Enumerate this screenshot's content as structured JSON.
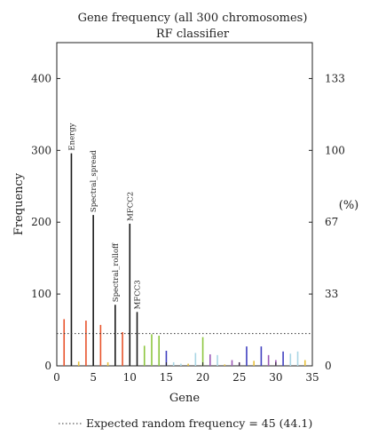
{
  "chart_data": {
    "type": "bar",
    "title": "Gene frequency (all 300 chromosomes)",
    "subtitle": "RF classifier",
    "xlabel": "Gene",
    "ylabel": "Frequency",
    "y2label": "(%)",
    "xlim": [
      0,
      35
    ],
    "ylim": [
      0,
      450
    ],
    "xticks": [
      0,
      5,
      10,
      15,
      20,
      25,
      30,
      35
    ],
    "yticks": [
      0,
      100,
      200,
      300,
      400
    ],
    "y2ticks": [
      {
        "value": 0,
        "label": "0"
      },
      {
        "value": 100,
        "label": "33"
      },
      {
        "value": 200,
        "label": "67"
      },
      {
        "value": 300,
        "label": "100"
      },
      {
        "value": 400,
        "label": "133"
      }
    ],
    "bars": [
      {
        "x": 1,
        "value": 65,
        "color": "#e8532b"
      },
      {
        "x": 2,
        "value": 296,
        "color": "#1a1a1a",
        "label": "Energy"
      },
      {
        "x": 3,
        "value": 6,
        "color": "#e9c13a"
      },
      {
        "x": 4,
        "value": 63,
        "color": "#e8532b"
      },
      {
        "x": 5,
        "value": 210,
        "color": "#1a1a1a",
        "label": "Spectral_spread"
      },
      {
        "x": 6,
        "value": 57,
        "color": "#e8532b"
      },
      {
        "x": 7,
        "value": 5,
        "color": "#e9c13a"
      },
      {
        "x": 8,
        "value": 85,
        "color": "#1a1a1a",
        "label": "Spectral_rolloff"
      },
      {
        "x": 9,
        "value": 47,
        "color": "#e8532b"
      },
      {
        "x": 10,
        "value": 198,
        "color": "#1a1a1a",
        "label": "MFCC2"
      },
      {
        "x": 11,
        "value": 75,
        "color": "#1a1a1a",
        "label": "MFCC3"
      },
      {
        "x": 12,
        "value": 28,
        "color": "#8dc63f"
      },
      {
        "x": 13,
        "value": 44,
        "color": "#8dc63f"
      },
      {
        "x": 14,
        "value": 42,
        "color": "#8dc63f"
      },
      {
        "x": 15,
        "value": 21,
        "color": "#3f3fbf"
      },
      {
        "x": 16,
        "value": 5,
        "color": "#a9d6e5"
      },
      {
        "x": 17,
        "value": 3,
        "color": "#a9d6e5"
      },
      {
        "x": 18,
        "value": 3,
        "color": "#e9c13a"
      },
      {
        "x": 19,
        "value": 18,
        "color": "#a9d6e5"
      },
      {
        "x": 20,
        "value": 40,
        "color": "#8dc63f"
      },
      {
        "x": 21,
        "value": 16,
        "color": "#9b59b6"
      },
      {
        "x": 22,
        "value": 15,
        "color": "#a9d6e5"
      },
      {
        "x": 23,
        "value": 2,
        "color": "#e9c13a"
      },
      {
        "x": 24,
        "value": 8,
        "color": "#9b59b6"
      },
      {
        "x": 25,
        "value": 5,
        "color": "#9b59b6"
      },
      {
        "x": 26,
        "value": 27,
        "color": "#3f3fbf"
      },
      {
        "x": 27,
        "value": 7,
        "color": "#e9c13a"
      },
      {
        "x": 28,
        "value": 27,
        "color": "#3f3fbf"
      },
      {
        "x": 29,
        "value": 15,
        "color": "#9b59b6"
      },
      {
        "x": 30,
        "value": 8,
        "color": "#9b59b6"
      },
      {
        "x": 31,
        "value": 20,
        "color": "#3f3fbf"
      },
      {
        "x": 32,
        "value": 17,
        "color": "#a9d6e5"
      },
      {
        "x": 33,
        "value": 20,
        "color": "#a9d6e5"
      },
      {
        "x": 34,
        "value": 8,
        "color": "#e9c13a"
      }
    ],
    "reference_line": {
      "value": 45,
      "style": "dotted"
    },
    "legend": {
      "text": "Expected random frequency = 45 (44.1)",
      "placement": "bottom"
    },
    "grid": false
  }
}
